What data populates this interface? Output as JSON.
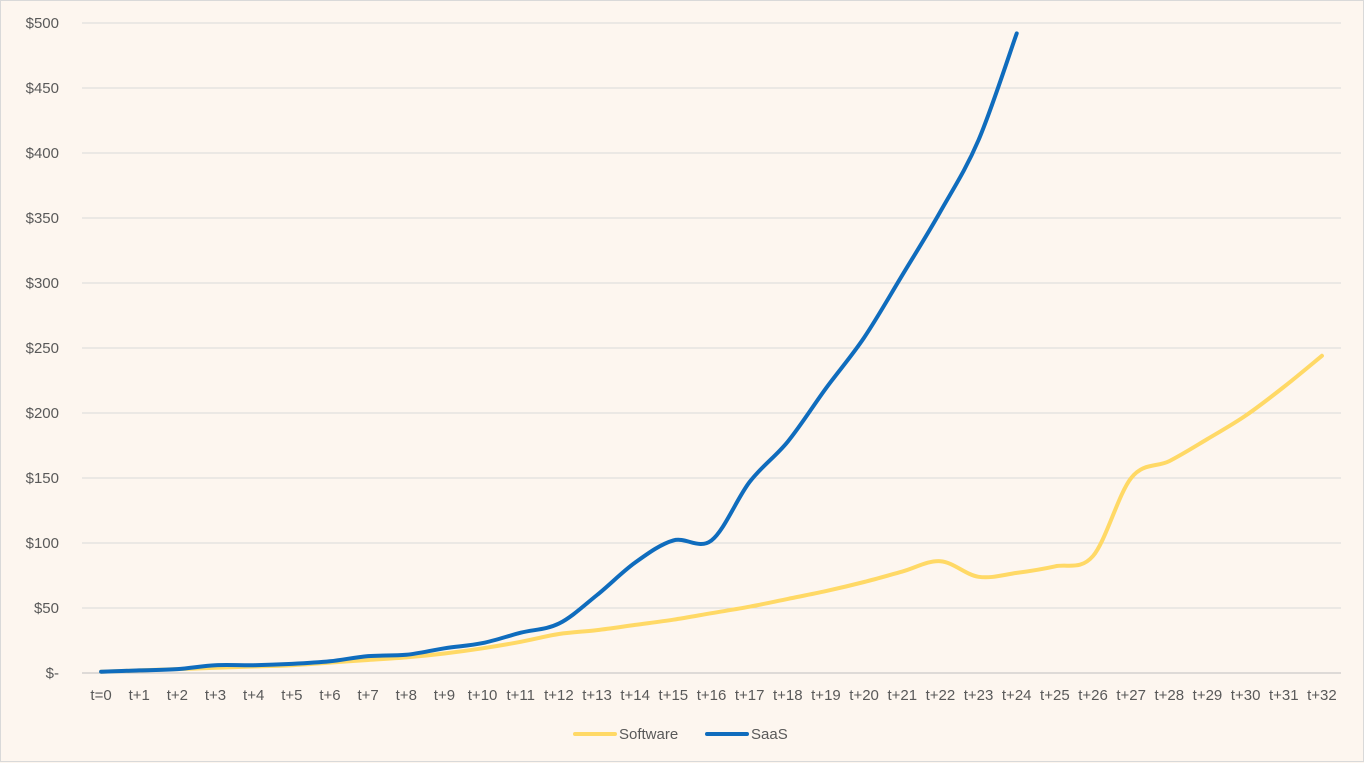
{
  "chart_data": {
    "type": "line",
    "title": "",
    "xlabel": "",
    "ylabel": "",
    "x": [
      "t=0",
      "t+1",
      "t+2",
      "t+3",
      "t+4",
      "t+5",
      "t+6",
      "t+7",
      "t+8",
      "t+9",
      "t+10",
      "t+11",
      "t+12",
      "t+13",
      "t+14",
      "t+15",
      "t+16",
      "t+17",
      "t+18",
      "t+19",
      "t+20",
      "t+21",
      "t+22",
      "t+23",
      "t+24",
      "t+25",
      "t+26",
      "t+27",
      "t+28",
      "t+29",
      "t+30",
      "t+31",
      "t+32"
    ],
    "y_ticks": [
      "$-",
      "$50",
      "$100",
      "$150",
      "$200",
      "$250",
      "$300",
      "$350",
      "$400",
      "$450",
      "$500"
    ],
    "ylim": [
      0,
      500
    ],
    "grid": true,
    "legend_position": "bottom",
    "series": [
      {
        "name": "Software",
        "color": "#ffd966",
        "values": [
          1,
          2,
          3,
          4,
          5,
          6,
          8,
          10,
          12,
          15,
          19,
          24,
          30,
          33,
          37,
          41,
          46,
          51,
          57,
          63,
          70,
          78,
          86,
          74,
          77,
          82,
          90,
          150,
          163,
          180,
          198,
          220,
          244
        ]
      },
      {
        "name": "SaaS",
        "color": "#0f6cbd",
        "values": [
          1,
          2,
          3,
          6,
          6,
          7,
          9,
          13,
          14,
          19,
          23,
          31,
          38,
          60,
          85,
          102,
          102,
          147,
          178,
          219,
          258,
          306,
          355,
          410,
          492,
          null,
          null,
          null,
          null,
          null,
          null,
          null,
          null
        ]
      }
    ]
  }
}
